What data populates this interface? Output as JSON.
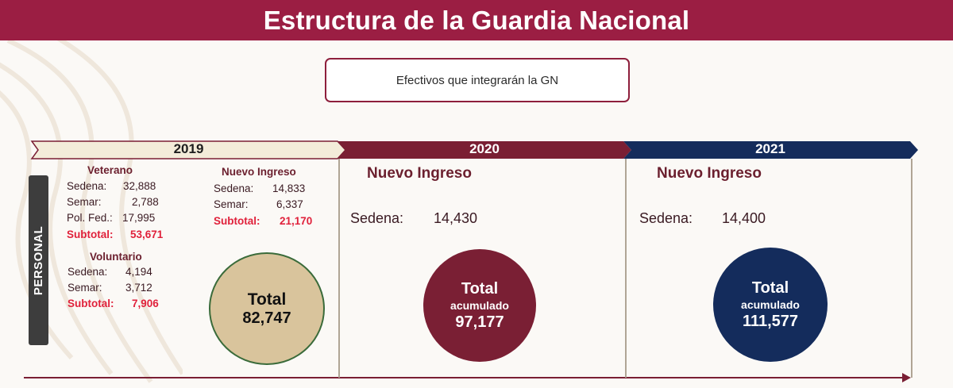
{
  "title": "Estructura de la Guardia Nacional",
  "subtitle": "Efectivos que integrarán la GN",
  "side_label": "PERSONAL",
  "colors": {
    "header": "#9b1e43",
    "y2019": "#f3ecd9",
    "y2020": "#7a1f34",
    "y2021": "#142c5c",
    "highlight": "#e0213b"
  },
  "years": [
    "2019",
    "2020",
    "2021"
  ],
  "y2019": {
    "veterano": {
      "heading": "Veterano",
      "rows": [
        {
          "label": "Sedena:",
          "value": "32,888"
        },
        {
          "label": "Semar:",
          "value": "2,788"
        },
        {
          "label": "Pol. Fed.:",
          "value": "17,995"
        }
      ],
      "subtotal_label": "Subtotal:",
      "subtotal_value": "53,671"
    },
    "voluntario": {
      "heading": "Voluntario",
      "rows": [
        {
          "label": "Sedena:",
          "value": "4,194"
        },
        {
          "label": "Semar:",
          "value": "3,712"
        }
      ],
      "subtotal_label": "Subtotal:",
      "subtotal_value": "7,906"
    },
    "nuevo_ingreso": {
      "heading": "Nuevo Ingreso",
      "rows": [
        {
          "label": "Sedena:",
          "value": "14,833"
        },
        {
          "label": "Semar:",
          "value": "6,337"
        }
      ],
      "subtotal_label": "Subtotal:",
      "subtotal_value": "21,170"
    },
    "total": {
      "label": "Total",
      "value": "82,747"
    }
  },
  "y2020": {
    "heading": "Nuevo Ingreso",
    "label": "Sedena:",
    "value": "14,430",
    "total": {
      "line1": "Total",
      "line2": "acumulado",
      "value": "97,177"
    }
  },
  "y2021": {
    "heading": "Nuevo Ingreso",
    "label": "Sedena:",
    "value": "14,400",
    "total": {
      "line1": "Total",
      "line2": "acumulado",
      "value": "111,577"
    }
  }
}
